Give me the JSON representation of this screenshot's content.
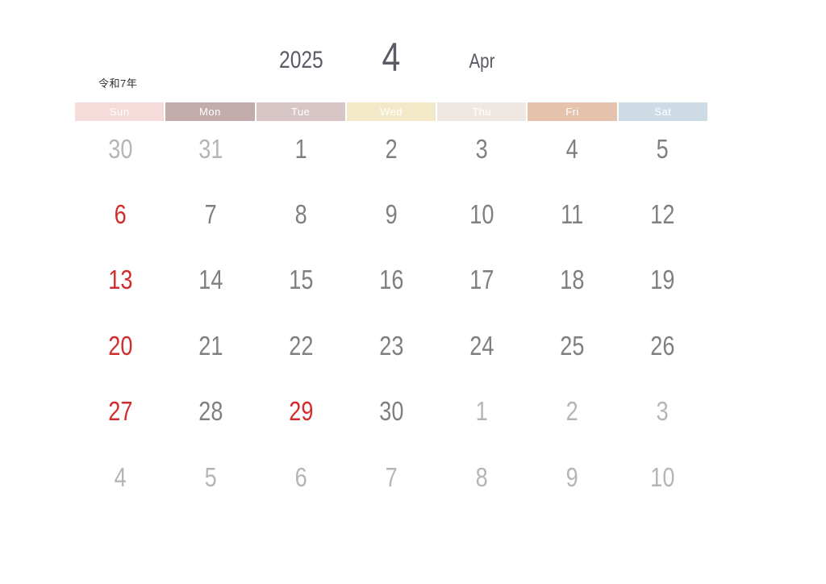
{
  "header": {
    "year": "2025",
    "month_number": "4",
    "month_abbr": "Apr",
    "era_label": "令和7年",
    "text_color": "#5b5b66"
  },
  "weekday_header": {
    "text_color": "#ffffff",
    "days": [
      {
        "label": "Sun",
        "bg": "#f6dbdb"
      },
      {
        "label": "Mon",
        "bg": "#c3abab"
      },
      {
        "label": "Tue",
        "bg": "#d8c6c6"
      },
      {
        "label": "Wed",
        "bg": "#f3e9c9"
      },
      {
        "label": "Thu",
        "bg": "#efe7e1"
      },
      {
        "label": "Fri",
        "bg": "#e5c2ac"
      },
      {
        "label": "Sat",
        "bg": "#cddbe4"
      }
    ]
  },
  "colors": {
    "current_day": "#7f7f7f",
    "adjacent_month_day": "#b5b5b5",
    "sunday_holiday": "#d22b2b",
    "page_background": "#ffffff"
  },
  "grid": {
    "weeks": [
      [
        {
          "day": "30",
          "style": "adjacent"
        },
        {
          "day": "31",
          "style": "adjacent"
        },
        {
          "day": "1",
          "style": "current"
        },
        {
          "day": "2",
          "style": "current"
        },
        {
          "day": "3",
          "style": "current"
        },
        {
          "day": "4",
          "style": "current"
        },
        {
          "day": "5",
          "style": "current"
        }
      ],
      [
        {
          "day": "6",
          "style": "red"
        },
        {
          "day": "7",
          "style": "current"
        },
        {
          "day": "8",
          "style": "current"
        },
        {
          "day": "9",
          "style": "current"
        },
        {
          "day": "10",
          "style": "current"
        },
        {
          "day": "11",
          "style": "current"
        },
        {
          "day": "12",
          "style": "current"
        }
      ],
      [
        {
          "day": "13",
          "style": "red"
        },
        {
          "day": "14",
          "style": "current"
        },
        {
          "day": "15",
          "style": "current"
        },
        {
          "day": "16",
          "style": "current"
        },
        {
          "day": "17",
          "style": "current"
        },
        {
          "day": "18",
          "style": "current"
        },
        {
          "day": "19",
          "style": "current"
        }
      ],
      [
        {
          "day": "20",
          "style": "red"
        },
        {
          "day": "21",
          "style": "current"
        },
        {
          "day": "22",
          "style": "current"
        },
        {
          "day": "23",
          "style": "current"
        },
        {
          "day": "24",
          "style": "current"
        },
        {
          "day": "25",
          "style": "current"
        },
        {
          "day": "26",
          "style": "current"
        }
      ],
      [
        {
          "day": "27",
          "style": "red"
        },
        {
          "day": "28",
          "style": "current"
        },
        {
          "day": "29",
          "style": "red"
        },
        {
          "day": "30",
          "style": "current"
        },
        {
          "day": "1",
          "style": "adjacent"
        },
        {
          "day": "2",
          "style": "adjacent"
        },
        {
          "day": "3",
          "style": "adjacent"
        }
      ],
      [
        {
          "day": "4",
          "style": "adjacent"
        },
        {
          "day": "5",
          "style": "adjacent"
        },
        {
          "day": "6",
          "style": "adjacent"
        },
        {
          "day": "7",
          "style": "adjacent"
        },
        {
          "day": "8",
          "style": "adjacent"
        },
        {
          "day": "9",
          "style": "adjacent"
        },
        {
          "day": "10",
          "style": "adjacent"
        }
      ]
    ]
  }
}
